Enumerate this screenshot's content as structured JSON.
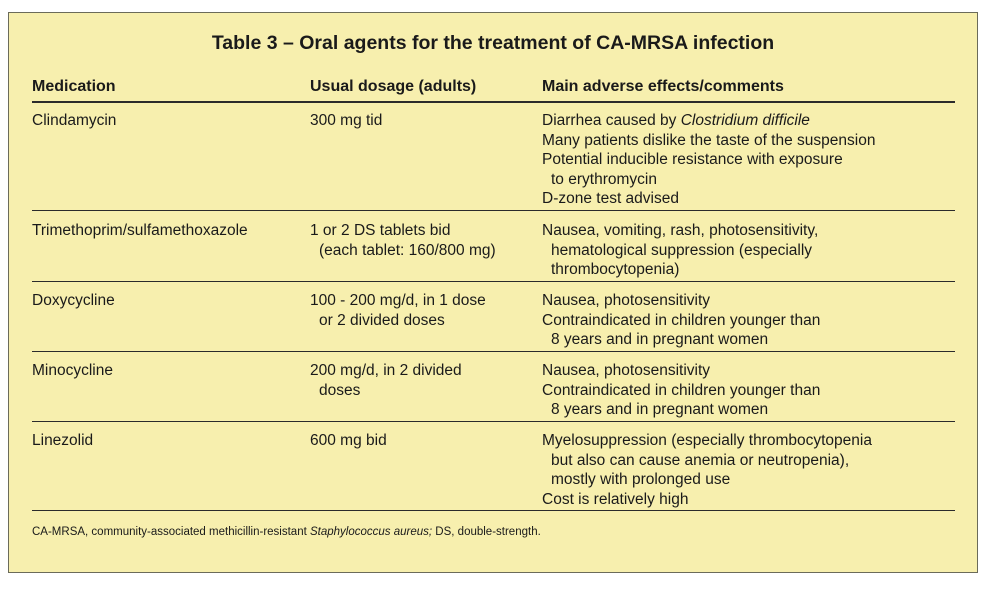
{
  "table": {
    "title": "Table 3 – Oral agents for the treatment of CA-MRSA infection",
    "headers": {
      "medication": "Medication",
      "dosage": "Usual dosage (adults)",
      "effects": "Main adverse effects/comments"
    },
    "rows": [
      {
        "medication": "Clindamycin",
        "dosage": [
          "300 mg tid"
        ],
        "effects": [
          {
            "pre": "Diarrhea caused by ",
            "italic": "Clostridium difficile"
          },
          "Many patients dislike the taste of the suspension",
          "Potential inducible resistance with exposure",
          "to erythromycin",
          "D-zone test advised"
        ]
      },
      {
        "medication": "Trimethoprim/sulfamethoxazole",
        "dosage": [
          "1 or 2 DS tablets bid",
          "(each tablet: 160/800 mg)"
        ],
        "effects": [
          "Nausea, vomiting, rash, photosensitivity,",
          "hematological suppression (especially",
          "thrombocytopenia)"
        ]
      },
      {
        "medication": "Doxycycline",
        "dosage": [
          "100 - 200 mg/d, in 1 dose",
          "or 2 divided doses"
        ],
        "effects": [
          "Nausea, photosensitivity",
          "Contraindicated in children younger than",
          "8 years and in pregnant women"
        ]
      },
      {
        "medication": "Minocycline",
        "dosage": [
          "200 mg/d, in 2 divided",
          "doses"
        ],
        "effects": [
          "Nausea, photosensitivity",
          "Contraindicated in children younger than",
          "8 years and in pregnant women"
        ]
      },
      {
        "medication": "Linezolid",
        "dosage": [
          "600 mg bid"
        ],
        "effects": [
          "Myelosuppression (especially thrombocytopenia",
          "but also can cause anemia or neutropenia),",
          "mostly with prolonged use",
          "Cost is relatively high"
        ]
      }
    ],
    "footnote": {
      "pre": "CA-MRSA, community-associated methicillin-resistant ",
      "italic": "Staphylococcus aureus;",
      "post": " DS, double-strength."
    }
  }
}
